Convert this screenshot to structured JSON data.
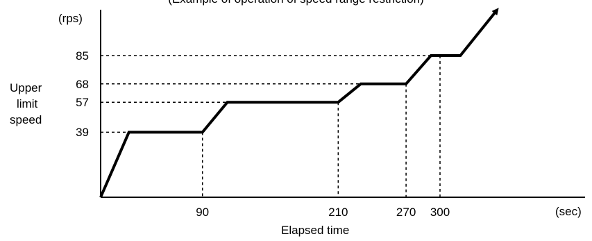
{
  "chart_data": {
    "type": "line",
    "title": "(Example of operation of speed range restriction)",
    "ylabel_unit": "(rps)",
    "xlabel_unit": "(sec)",
    "ylabel": [
      "Upper",
      "limit",
      "speed"
    ],
    "xlabel": "Elapsed time",
    "y_ticks": [
      "39",
      "57",
      "68",
      "85"
    ],
    "x_ticks": [
      "90",
      "210",
      "270",
      "300"
    ],
    "series": [
      {
        "points": [
          {
            "x": 0,
            "y": 0
          },
          {
            "x": 25,
            "y": 39
          },
          {
            "x": 90,
            "y": 39
          },
          {
            "x": 112,
            "y": 57
          },
          {
            "x": 210,
            "y": 57
          },
          {
            "x": 230,
            "y": 68
          },
          {
            "x": 270,
            "y": 68
          },
          {
            "x": 292,
            "y": 85
          },
          {
            "x": 318,
            "y": 85
          },
          {
            "x": 350,
            "y": 112
          }
        ],
        "arrow_end": true
      }
    ],
    "reference_lines": [
      {
        "x": 90,
        "y": 39
      },
      {
        "x": 210,
        "y": 57
      },
      {
        "x": 270,
        "y": 68
      },
      {
        "x": 300,
        "y": 85
      }
    ],
    "xlim": [
      0,
      400
    ],
    "ylim": [
      0,
      112
    ],
    "grid": false
  }
}
